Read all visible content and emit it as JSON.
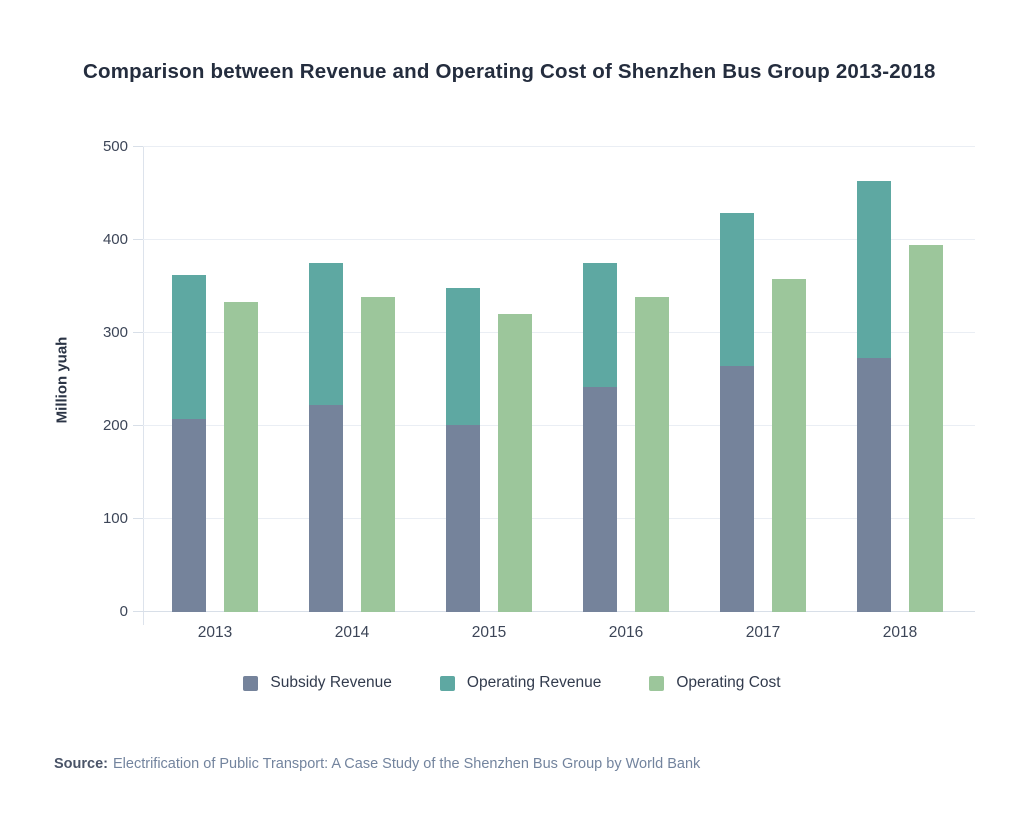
{
  "title": "Comparison between Revenue and Operating Cost of Shenzhen Bus Group 2013-2018",
  "y_axis_title": "Million yuah",
  "chart_data": {
    "type": "bar",
    "title": "Comparison between Revenue and Operating Cost of Shenzhen Bus Group 2013-2018",
    "categories": [
      "2013",
      "2014",
      "2015",
      "2016",
      "2017",
      "2018"
    ],
    "series": [
      {
        "name": "Subsidy Revenue",
        "stack": "revenue",
        "color": "#75839B",
        "values": [
          208,
          223,
          201,
          242,
          265,
          273
        ]
      },
      {
        "name": "Operating Revenue",
        "stack": "revenue",
        "color": "#5EA8A2",
        "values": [
          154,
          152,
          147,
          133,
          164,
          190
        ]
      },
      {
        "name": "Operating Cost",
        "stack": null,
        "color": "#9CC69B",
        "values": [
          333,
          339,
          320,
          339,
          358,
          395
        ]
      }
    ],
    "revenue_stack_totals": [
      362,
      375,
      348,
      375,
      429,
      463
    ],
    "xlabel": "",
    "ylabel": "Million yuah",
    "ylim": [
      0,
      500
    ],
    "yticks": [
      0,
      100,
      200,
      300,
      400,
      500
    ],
    "grid": "horizontal",
    "legend_position": "bottom"
  },
  "legend": {
    "items": [
      {
        "label": "Subsidy Revenue",
        "color": "#75839B"
      },
      {
        "label": "Operating Revenue",
        "color": "#5EA8A2"
      },
      {
        "label": "Operating Cost",
        "color": "#9CC69B"
      }
    ]
  },
  "source": {
    "label": "Source:",
    "text": "Electrification of Public Transport: A Case Study of the Shenzhen Bus Group by World Bank"
  }
}
